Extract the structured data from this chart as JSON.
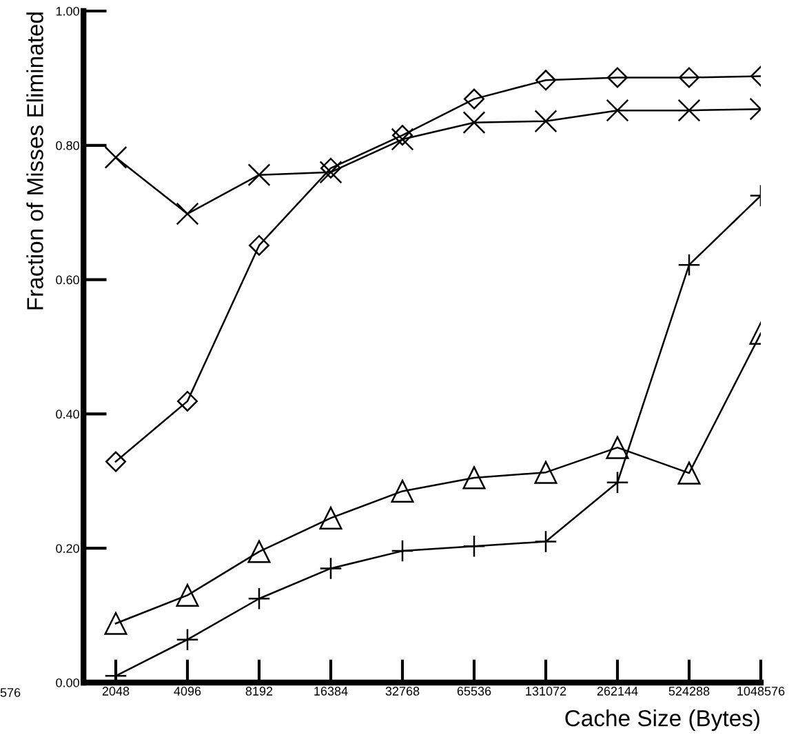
{
  "chart_data": {
    "type": "line",
    "xlabel": "Cache Size (Bytes)",
    "ylabel": "Fraction of Misses Eliminated",
    "categories": [
      "2048",
      "4096",
      "8192",
      "16384",
      "32768",
      "65536",
      "131072",
      "262144",
      "524288",
      "1048576"
    ],
    "ylim": [
      0,
      1.0
    ],
    "yticks": [
      {
        "value": 0,
        "label": "0.00"
      },
      {
        "value": 0.2,
        "label": "0.20"
      },
      {
        "value": 0.4,
        "label": "0.40"
      },
      {
        "value": 0.6,
        "label": "0.60"
      },
      {
        "value": 0.8,
        "label": "0.80"
      },
      {
        "value": 1.0,
        "label": "1.00"
      }
    ],
    "grid": false,
    "line_style": "solid",
    "annotations": [
      "576"
    ],
    "series": [
      {
        "color": "#000000",
        "marker": "diamond",
        "values": [
          0.329,
          0.419,
          0.651,
          0.766,
          0.815,
          0.869,
          0.897,
          0.901,
          0.901,
          0.903
        ]
      },
      {
        "color": "#000000",
        "marker": "cross",
        "values": [
          0.782,
          0.698,
          0.756,
          0.76,
          0.809,
          0.834,
          0.836,
          0.852,
          0.852,
          0.854
        ]
      },
      {
        "color": "#000000",
        "marker": "triangle",
        "values": [
          0.088,
          0.13,
          0.195,
          0.245,
          0.285,
          0.305,
          0.313,
          0.35,
          0.312,
          0.52
        ]
      },
      {
        "color": "#000000",
        "marker": "plus",
        "values": [
          0.01,
          0.064,
          0.125,
          0.17,
          0.196,
          0.203,
          0.21,
          0.298,
          0.622,
          0.725
        ]
      }
    ]
  }
}
